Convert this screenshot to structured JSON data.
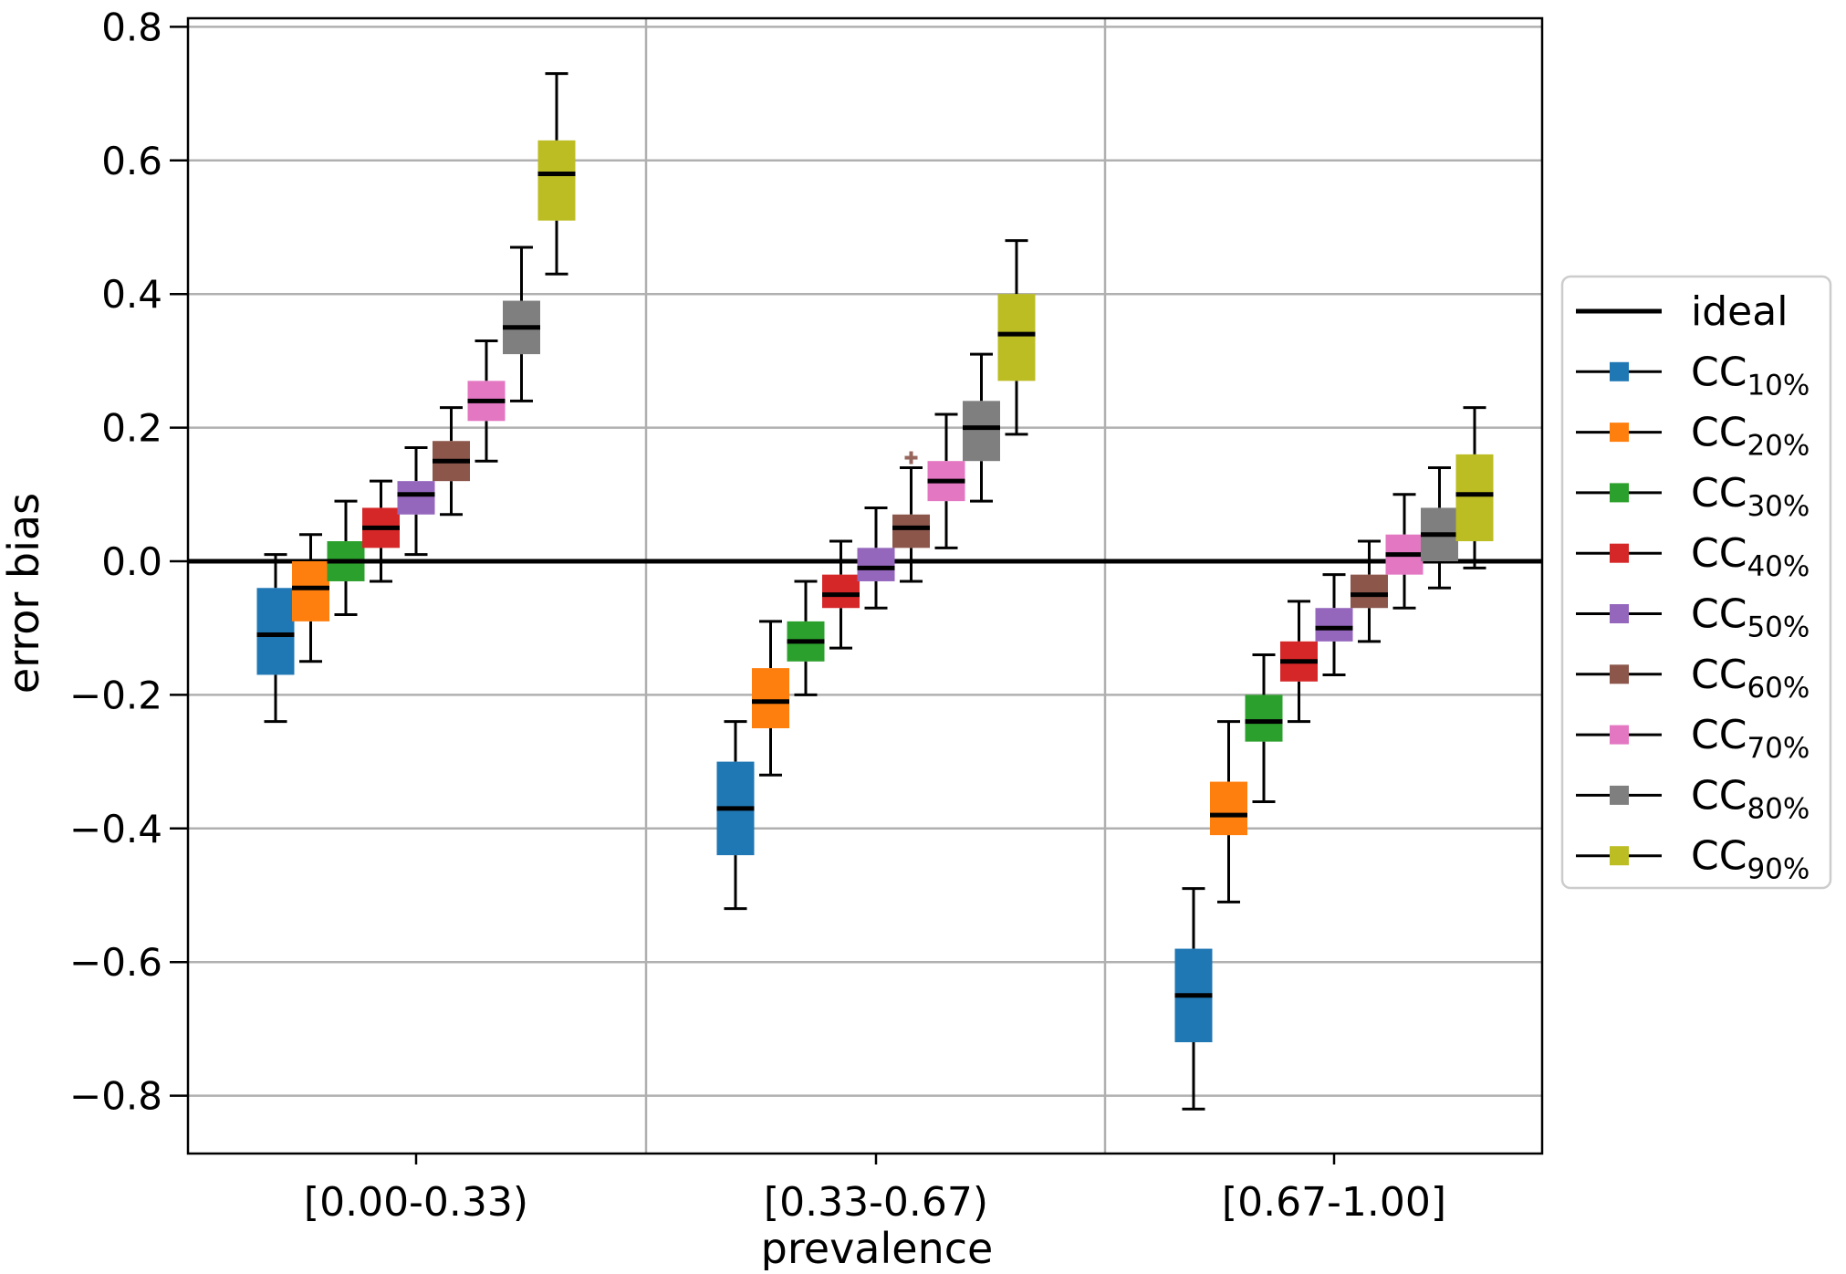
{
  "chart_data": {
    "type": "boxplot",
    "title": "",
    "xlabel": "prevalence",
    "ylabel": "error bias",
    "ylim": [
      -0.89,
      0.82
    ],
    "yticks": [
      0.8,
      0.6,
      0.4,
      0.2,
      0.0,
      -0.2,
      -0.4,
      -0.6,
      -0.8
    ],
    "grid": true,
    "legend_position": "right-outside",
    "groups": [
      "[0.00-0.33)",
      "[0.33-0.67)",
      "[0.67-1.00]"
    ],
    "reference_line": {
      "label": "ideal",
      "value": 0.0,
      "color": "#000000"
    },
    "box_stat_order": [
      "whisker_low",
      "q1",
      "median",
      "q3",
      "whisker_high"
    ],
    "series": [
      {
        "id": "CC10pct",
        "label": "CC",
        "subscript": "10%",
        "color": "#1f77b4",
        "boxes": [
          [
            -0.24,
            -0.17,
            -0.11,
            -0.04,
            0.01
          ],
          [
            -0.52,
            -0.44,
            -0.37,
            -0.3,
            -0.24
          ],
          [
            -0.82,
            -0.72,
            -0.65,
            -0.58,
            -0.49
          ]
        ]
      },
      {
        "id": "CC20pct",
        "label": "CC",
        "subscript": "20%",
        "color": "#ff7f0e",
        "boxes": [
          [
            -0.15,
            -0.09,
            -0.04,
            0.0,
            0.04
          ],
          [
            -0.32,
            -0.25,
            -0.21,
            -0.16,
            -0.09
          ],
          [
            -0.51,
            -0.41,
            -0.38,
            -0.33,
            -0.24
          ]
        ]
      },
      {
        "id": "CC30pct",
        "label": "CC",
        "subscript": "30%",
        "color": "#2ca02c",
        "boxes": [
          [
            -0.08,
            -0.03,
            0.0,
            0.03,
            0.09
          ],
          [
            -0.2,
            -0.15,
            -0.12,
            -0.09,
            -0.03
          ],
          [
            -0.36,
            -0.27,
            -0.24,
            -0.2,
            -0.14
          ]
        ]
      },
      {
        "id": "CC40pct",
        "label": "CC",
        "subscript": "40%",
        "color": "#d62728",
        "boxes": [
          [
            -0.03,
            0.02,
            0.05,
            0.08,
            0.12
          ],
          [
            -0.13,
            -0.07,
            -0.05,
            -0.02,
            0.03
          ],
          [
            -0.24,
            -0.18,
            -0.15,
            -0.12,
            -0.06
          ]
        ]
      },
      {
        "id": "CC50pct",
        "label": "CC",
        "subscript": "50%",
        "color": "#9467bd",
        "boxes": [
          [
            0.01,
            0.07,
            0.1,
            0.12,
            0.17
          ],
          [
            -0.07,
            -0.03,
            -0.01,
            0.02,
            0.08
          ],
          [
            -0.17,
            -0.12,
            -0.1,
            -0.07,
            -0.02
          ]
        ]
      },
      {
        "id": "CC60pct",
        "label": "CC",
        "subscript": "60%",
        "color": "#8c564b",
        "boxes": [
          [
            0.07,
            0.12,
            0.15,
            0.18,
            0.23
          ],
          [
            -0.03,
            0.02,
            0.05,
            0.07,
            0.14
          ],
          [
            -0.12,
            -0.07,
            -0.05,
            -0.02,
            0.03
          ]
        ]
      },
      {
        "id": "CC70pct",
        "label": "CC",
        "subscript": "70%",
        "color": "#e377c2",
        "boxes": [
          [
            0.15,
            0.21,
            0.24,
            0.27,
            0.33
          ],
          [
            0.02,
            0.09,
            0.12,
            0.15,
            0.22
          ],
          [
            -0.07,
            -0.02,
            0.01,
            0.04,
            0.1
          ]
        ]
      },
      {
        "id": "CC80pct",
        "label": "CC",
        "subscript": "80%",
        "color": "#7f7f7f",
        "boxes": [
          [
            0.24,
            0.31,
            0.35,
            0.39,
            0.47
          ],
          [
            0.09,
            0.15,
            0.2,
            0.24,
            0.31
          ],
          [
            -0.04,
            0.0,
            0.04,
            0.08,
            0.14
          ]
        ]
      },
      {
        "id": "CC90pct",
        "label": "CC",
        "subscript": "90%",
        "color": "#bcbd22",
        "boxes": [
          [
            0.43,
            0.51,
            0.58,
            0.63,
            0.73
          ],
          [
            0.19,
            0.27,
            0.34,
            0.4,
            0.48
          ],
          [
            -0.01,
            0.03,
            0.1,
            0.16,
            0.23
          ]
        ]
      }
    ],
    "outliers": [
      {
        "series_index": 5,
        "group_index": 1,
        "value": 0.155,
        "marker": "plus",
        "color": "#8c564b"
      }
    ],
    "legend": {
      "first_label": "ideal",
      "entry_prefix": "CC",
      "entry_subscripts": [
        "10%",
        "20%",
        "30%",
        "40%",
        "50%",
        "60%",
        "70%",
        "80%",
        "90%"
      ]
    }
  },
  "style": {
    "background": "#ffffff",
    "grid_color": "#b0b0b0",
    "separator_color": "#b0b0b0",
    "spine_color": "#000000",
    "whisker_color": "#000000",
    "median_color": "#000000",
    "ideal_line_color": "#000000",
    "legend_border_color": "#cccccc",
    "legend_background": "#ffffff"
  }
}
